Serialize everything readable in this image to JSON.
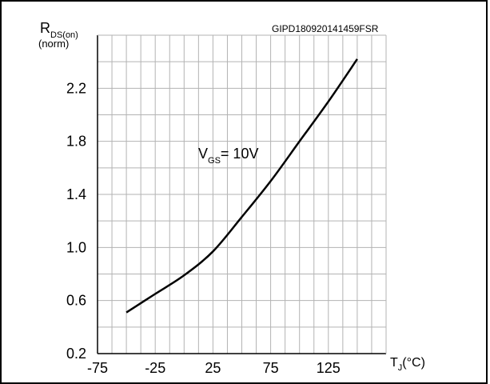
{
  "figure_code": "GIPD180920141459FSR",
  "y_axis": {
    "symbol": "R",
    "subscript": "DS(on)",
    "unit_line": "(norm)"
  },
  "x_axis": {
    "symbol": "T",
    "subscript": "J",
    "unit": "(°C)"
  },
  "annotation": {
    "symbol": "V",
    "subscript": "GS",
    "value": "= 10V"
  },
  "chart_data": {
    "type": "line",
    "title": "",
    "xlabel": "TJ(°C)",
    "ylabel": "RDS(on) (norm)",
    "xlim": [
      -75,
      175
    ],
    "ylim": [
      0.2,
      2.6
    ],
    "xticks": [
      -75,
      -25,
      25,
      75,
      125
    ],
    "xtick_labels": [
      "-75",
      "-25",
      "25",
      "75",
      "125"
    ],
    "yticks": [
      0.2,
      0.6,
      1.0,
      1.4,
      1.8,
      2.2
    ],
    "ytick_labels": [
      "0.2",
      "0.6",
      "1.0",
      "1.4",
      "1.8",
      "2.2"
    ],
    "grid": true,
    "series": [
      {
        "x": [
          -50,
          -25,
          0,
          25,
          50,
          75,
          100,
          125,
          150
        ],
        "y": [
          0.51,
          0.65,
          0.79,
          0.97,
          1.23,
          1.5,
          1.8,
          2.1,
          2.42
        ]
      }
    ]
  }
}
